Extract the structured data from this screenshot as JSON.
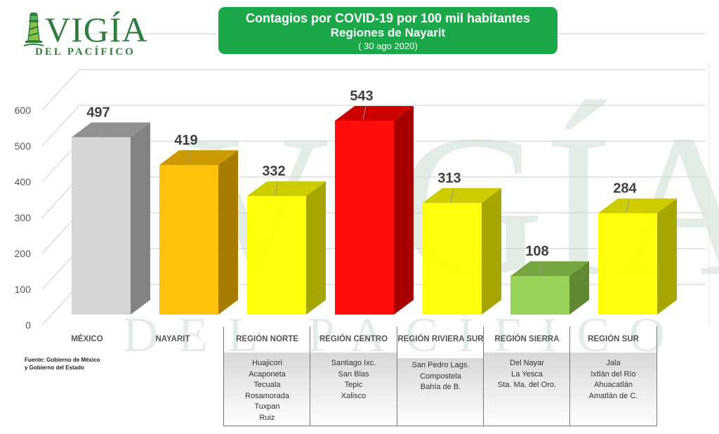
{
  "logo": {
    "name": "VIGÍA",
    "tagline": "DEL PACÍFICO"
  },
  "header": {
    "title": "Contagios por COVID-19 por 100 mil habitantes",
    "subtitle": "Regiones de Nayarit",
    "date": "( 30 ago 2020)"
  },
  "source": {
    "line1": "Fuente: Gobierno de México",
    "line2": "y Gobierno del Estado"
  },
  "colors": {
    "header_bg": "#1ca84a",
    "gray": "#d4d4d4",
    "orange": "#ffc000",
    "yellow": "#ffff00",
    "red": "#ff0000",
    "green": "#92d050"
  },
  "chart_data": {
    "type": "bar",
    "title": "Contagios por COVID-19 por 100 mil habitantes",
    "subtitle": "Regiones de Nayarit (30 ago 2020)",
    "xlabel": "",
    "ylabel": "",
    "ylim": [
      0,
      600
    ],
    "yticks": [
      0,
      100,
      200,
      300,
      400,
      500,
      600
    ],
    "grid": true,
    "legend": "none",
    "categories": [
      "MÉXICO",
      "NAYARIT",
      "REGIÓN NORTE",
      "REGIÓN CENTRO",
      "REGIÓN RIVIERA SUR",
      "REGIÓN SIERRA",
      "REGIÓN SUR"
    ],
    "values": [
      497,
      419,
      332,
      543,
      313,
      108,
      284
    ],
    "bar_colors": [
      "#d4d4d4",
      "#ffc000",
      "#ffff00",
      "#ff0000",
      "#ffff00",
      "#92d050",
      "#ffff00"
    ]
  },
  "regions": [
    {
      "name": "REGIÓN NORTE",
      "municipalities": [
        "Huajicori",
        "Acaponeta",
        "Tecuala",
        "Rosamorada",
        "Tuxpan",
        "Ruiz"
      ]
    },
    {
      "name": "REGIÓN CENTRO",
      "municipalities": [
        "Santiago Ixc.",
        "San Blas",
        "Tepic",
        "Xalisco"
      ]
    },
    {
      "name": "REGIÓN RIVIERA SUR",
      "municipalities": [
        "San Pedro Lags.",
        "Compostela",
        "Bahía de B."
      ]
    },
    {
      "name": "REGIÓN SIERRA",
      "municipalities": [
        "Del Nayar",
        "La Yesca",
        "Sta. Ma. del Oro."
      ]
    },
    {
      "name": "REGIÓN SUR",
      "municipalities": [
        "Jala",
        "Ixtlán del Río",
        "Ahuacatlán",
        "Amatlán de C."
      ]
    }
  ]
}
